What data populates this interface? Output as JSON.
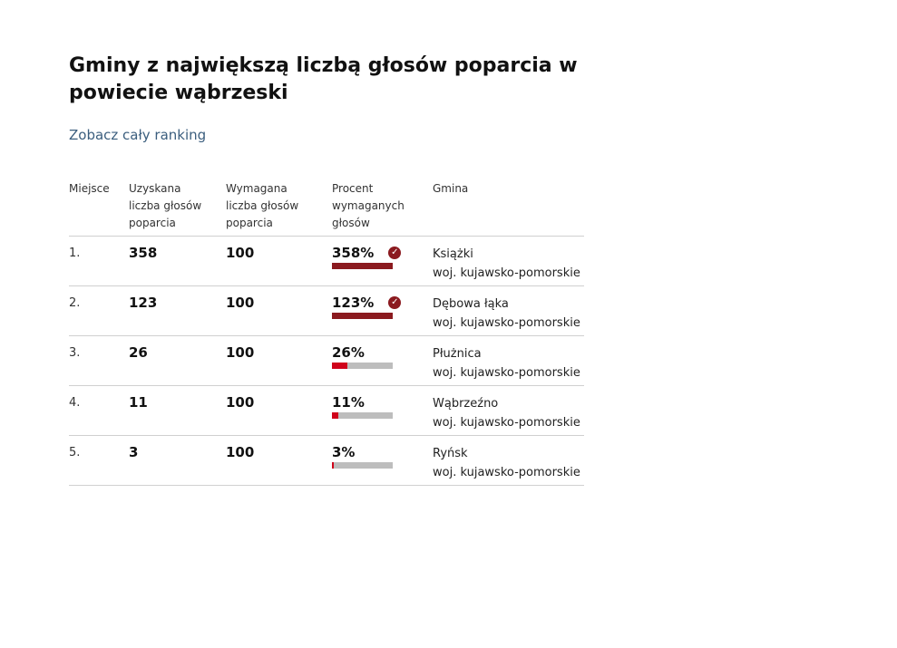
{
  "page": {
    "title_line1": "Gminy z największą liczbą głosów poparcia w",
    "title_line2": "powiecie wąbrzeski",
    "ranking_link": "Zobacz cały ranking"
  },
  "table": {
    "headers": {
      "place": "Miejsce",
      "obtained": [
        "Uzyskana",
        "liczba głosów",
        "poparcia"
      ],
      "required": [
        "Wymagana",
        "liczba głosów",
        "poparcia"
      ],
      "percent": [
        "Procent",
        "wymaganych",
        "głosów"
      ],
      "municipality": "Gmina"
    },
    "rows": [
      {
        "place": "1.",
        "obtained": "358",
        "required": "100",
        "percent_label": "358%",
        "percent_value": 358,
        "met": true,
        "gmina": "Książki",
        "region": "woj. kujawsko-pomorskie"
      },
      {
        "place": "2.",
        "obtained": "123",
        "required": "100",
        "percent_label": "123%",
        "percent_value": 123,
        "met": true,
        "gmina": "Dębowa łąka",
        "region": "woj. kujawsko-pomorskie"
      },
      {
        "place": "3.",
        "obtained": "26",
        "required": "100",
        "percent_label": "26%",
        "percent_value": 26,
        "met": false,
        "gmina": "Płużnica",
        "region": "woj. kujawsko-pomorskie"
      },
      {
        "place": "4.",
        "obtained": "11",
        "required": "100",
        "percent_label": "11%",
        "percent_value": 11,
        "met": false,
        "gmina": "Wąbrzeźno",
        "region": "woj. kujawsko-pomorskie"
      },
      {
        "place": "5.",
        "obtained": "3",
        "required": "100",
        "percent_label": "3%",
        "percent_value": 3,
        "met": false,
        "gmina": "Ryńsk",
        "region": "woj. kujawsko-pomorskie"
      }
    ]
  },
  "colors": {
    "bar_met": "#8b1a1f",
    "bar_partial": "#d0021b",
    "bar_track": "#bdbdbd",
    "link": "#3b5e7e"
  },
  "icons": {
    "met": "check-circle-icon"
  }
}
